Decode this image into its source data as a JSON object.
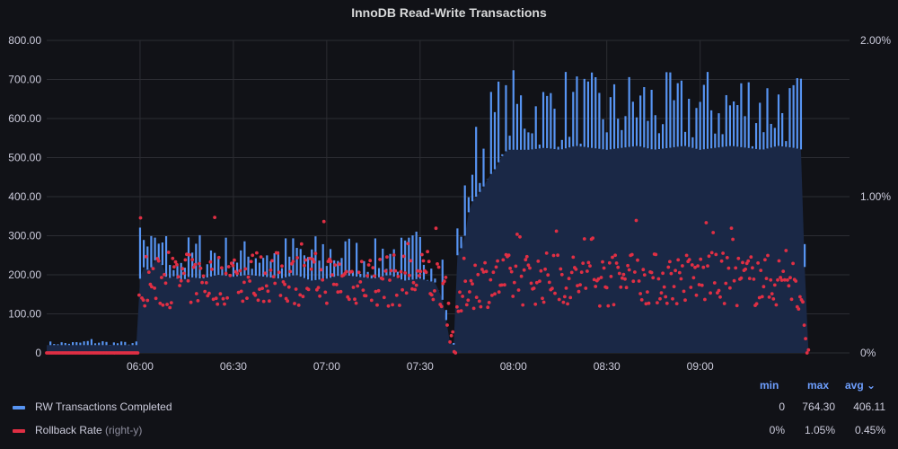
{
  "panel": {
    "title": "InnoDB Read-Write Transactions"
  },
  "colors": {
    "background": "#111217",
    "grid": "#2c2d33",
    "rw": "#5794f2",
    "rw_fill": "#1a2846",
    "rollback": "#e02f44"
  },
  "chart_data": {
    "type": "line",
    "title": "InnoDB Read-Write Transactions",
    "xlim": [
      "05:30",
      "09:48"
    ],
    "xticks": [
      "06:00",
      "06:30",
      "07:00",
      "07:30",
      "08:00",
      "08:30",
      "09:00"
    ],
    "ylim_left": [
      0,
      800
    ],
    "yticks_left": [
      "0",
      "100.00",
      "200.00",
      "300.00",
      "400.00",
      "500.00",
      "600.00",
      "700.00",
      "800.00"
    ],
    "ylim_right": [
      0,
      2
    ],
    "yticks_right": [
      "0%",
      "1.00%",
      "2.00%"
    ],
    "grid": true,
    "legend_position": "bottom",
    "series": [
      {
        "name": "RW Transactions Completed",
        "axis": "left",
        "style": "bars with filled area",
        "x": [
          "05:30",
          "05:40",
          "05:45",
          "05:50",
          "05:55",
          "05:59",
          "06:00",
          "06:01",
          "06:03",
          "06:05",
          "06:07",
          "06:09",
          "06:10",
          "06:12",
          "06:14",
          "06:15",
          "06:20",
          "06:25",
          "06:30",
          "06:35",
          "06:40",
          "06:45",
          "06:50",
          "06:55",
          "07:00",
          "07:05",
          "07:10",
          "07:15",
          "07:20",
          "07:25",
          "07:30",
          "07:35",
          "07:38",
          "07:39",
          "07:40",
          "07:41",
          "07:42",
          "07:44",
          "07:46",
          "07:48",
          "07:50",
          "07:52",
          "07:54",
          "07:56",
          "07:58",
          "08:00",
          "08:05",
          "08:10",
          "08:15",
          "08:20",
          "08:25",
          "08:30",
          "08:35",
          "08:40",
          "08:45",
          "08:50",
          "08:55",
          "09:00",
          "09:05",
          "09:10",
          "09:15",
          "09:20",
          "09:25",
          "09:30",
          "09:33",
          "09:34",
          "09:35"
        ],
        "low": [
          20,
          20,
          20,
          20,
          20,
          20,
          190,
          220,
          210,
          240,
          230,
          180,
          200,
          190,
          185,
          195,
          190,
          200,
          195,
          200,
          195,
          190,
          200,
          185,
          190,
          200,
          195,
          190,
          200,
          185,
          190,
          180,
          120,
          30,
          25,
          20,
          250,
          280,
          380,
          400,
          420,
          450,
          470,
          500,
          520,
          520,
          520,
          525,
          520,
          530,
          525,
          520,
          525,
          530,
          520,
          525,
          530,
          520,
          525,
          530,
          525,
          520,
          530,
          525,
          520,
          20,
          0
        ],
        "high": [
          30,
          30,
          40,
          30,
          30,
          30,
          380,
          330,
          310,
          300,
          410,
          280,
          300,
          300,
          280,
          300,
          320,
          310,
          300,
          290,
          330,
          300,
          310,
          300,
          320,
          310,
          300,
          290,
          320,
          300,
          330,
          310,
          300,
          40,
          30,
          30,
          350,
          420,
          550,
          600,
          610,
          680,
          700,
          720,
          700,
          730,
          720,
          710,
          740,
          730,
          720,
          700,
          720,
          740,
          730,
          720,
          710,
          740,
          720,
          730,
          750,
          740,
          730,
          720,
          720,
          30,
          0
        ]
      },
      {
        "name": "Rollback Rate",
        "suffix": "(right-y)",
        "axis": "right",
        "style": "points",
        "x": [
          "05:30",
          "05:45",
          "05:59",
          "06:00",
          "06:05",
          "06:10",
          "06:20",
          "06:30",
          "06:40",
          "06:50",
          "07:00",
          "07:10",
          "07:20",
          "07:30",
          "07:38",
          "07:41",
          "07:44",
          "07:50",
          "08:00",
          "08:10",
          "08:20",
          "08:30",
          "08:40",
          "08:50",
          "09:00",
          "09:10",
          "09:20",
          "09:30",
          "09:35"
        ],
        "y": [
          0,
          0,
          0,
          0.48,
          0.44,
          0.46,
          0.47,
          0.48,
          0.49,
          0.47,
          0.48,
          0.47,
          0.46,
          0.48,
          0.45,
          0,
          0.44,
          0.46,
          0.47,
          0.48,
          0.47,
          0.46,
          0.48,
          0.47,
          0.48,
          0.47,
          0.46,
          0.47,
          0
        ]
      }
    ]
  },
  "legend": {
    "headers": {
      "min": "min",
      "max": "max",
      "avg": "avg"
    },
    "rows": [
      {
        "name": "RW Transactions Completed",
        "suffix": "",
        "min": "0",
        "max": "764.30",
        "avg": "406.11"
      },
      {
        "name": "Rollback Rate",
        "suffix": "(right-y)",
        "min": "0%",
        "max": "1.05%",
        "avg": "0.45%"
      }
    ]
  }
}
